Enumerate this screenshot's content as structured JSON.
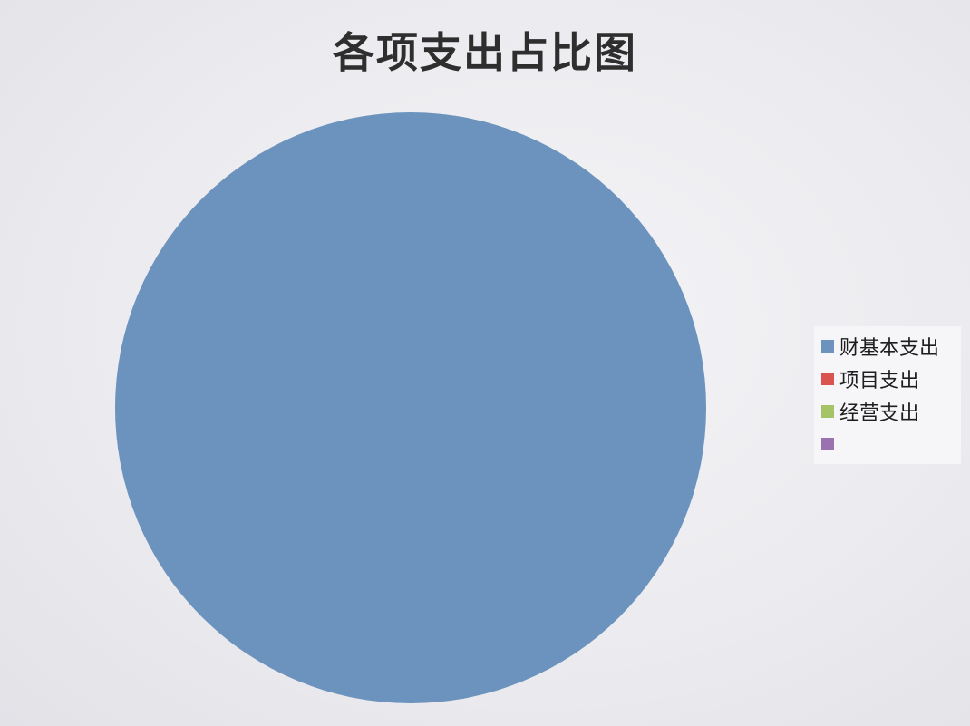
{
  "chart_data": {
    "type": "pie",
    "title": "各项支出占比图",
    "categories": [
      "财基本支出",
      "项目支出",
      "经营支出",
      ""
    ],
    "values": [
      100,
      0,
      0,
      0
    ],
    "colors": [
      "#6b93bd",
      "#d9534f",
      "#a5c467",
      "#9b72b0"
    ],
    "legend_position": "right"
  }
}
